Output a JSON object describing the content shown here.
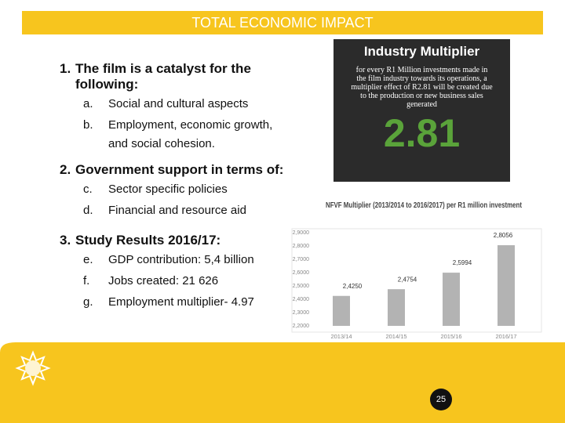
{
  "header": {
    "title": "TOTAL ECONOMIC IMPACT"
  },
  "sections": [
    {
      "number": "1.",
      "heading": "The film is a catalyst for the following:",
      "items": [
        {
          "marker": "a.",
          "text": "Social and cultural aspects"
        },
        {
          "marker": "b.",
          "text": "Employment, economic growth, and social cohesion."
        }
      ]
    },
    {
      "number": "2.",
      "heading": "Government support in terms of:",
      "items": [
        {
          "marker": "c.",
          "text": "Sector specific policies"
        },
        {
          "marker": "d.",
          "text": "Financial and resource aid"
        }
      ]
    },
    {
      "number": "3.",
      "heading": "Study Results 2016/17:",
      "items": [
        {
          "marker": "e.",
          "text": "GDP contribution: 5,4 billion"
        },
        {
          "marker": "f.",
          "text": "Jobs created: 21 626"
        },
        {
          "marker": "g.",
          "text": "Employment multiplier- 4.97"
        }
      ]
    }
  ],
  "card": {
    "title": "Industry Multiplier",
    "text": "for every R1 Million investments made in the film industry towards its operations, a multiplier effect of R2.81 will be created due to the production or new business sales generated",
    "value": "2.81"
  },
  "chart_data": {
    "type": "bar",
    "title": "NFVF Multiplier (2013/2014 to 2016/2017) per R1 million investment",
    "categories": [
      "2013/14",
      "2014/15",
      "2015/16",
      "2016/17"
    ],
    "values": [
      2.425,
      2.4754,
      2.5994,
      2.8056
    ],
    "value_labels": [
      "2,4250",
      "2,4754",
      "2,5994",
      "2,8056"
    ],
    "color": "#b3b3b3",
    "ylim": [
      2.2,
      2.9
    ],
    "yticks": [
      {
        "value": 2.2,
        "label": "2,2000"
      },
      {
        "value": 2.3,
        "label": "2,3000"
      },
      {
        "value": 2.4,
        "label": "2,4000"
      },
      {
        "value": 2.5,
        "label": "2,5000"
      },
      {
        "value": 2.6,
        "label": "2,6000"
      },
      {
        "value": 2.7,
        "label": "2,7000"
      },
      {
        "value": 2.8,
        "label": "2,8000"
      },
      {
        "value": 2.9,
        "label": "2,9000"
      }
    ],
    "grid": false
  },
  "footer": {
    "page": "25"
  }
}
